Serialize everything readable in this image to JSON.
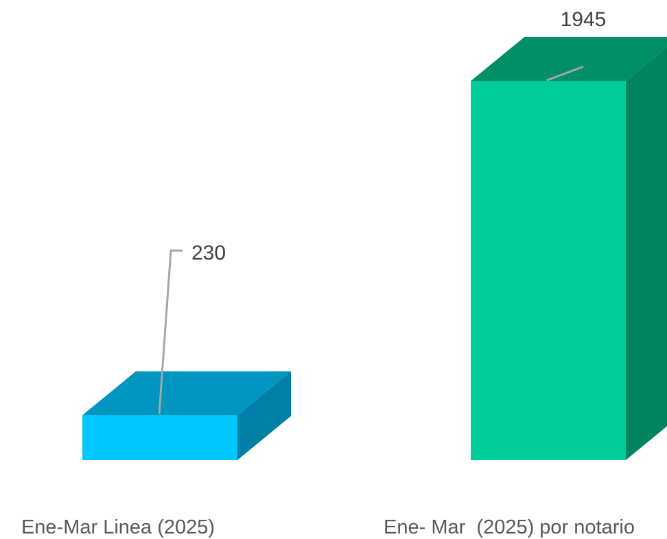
{
  "chart_data": {
    "type": "bar",
    "style": "3d-column",
    "categories": [
      "Ene-Mar Linea (2025)",
      "Ene- Mar  (2025) por notario"
    ],
    "values": [
      230,
      1945
    ],
    "data_labels": [
      "230",
      "1945"
    ],
    "colors": [
      {
        "front": "#00c8ff",
        "top": "#0096c0",
        "side": "#0080a6"
      },
      {
        "front": "#00cc99",
        "top": "#008f69",
        "side": "#00845f"
      }
    ],
    "leader_line_color": "#a6a6a6",
    "title": "",
    "xlabel": "",
    "ylabel": "",
    "grid": false,
    "legend": "none"
  }
}
